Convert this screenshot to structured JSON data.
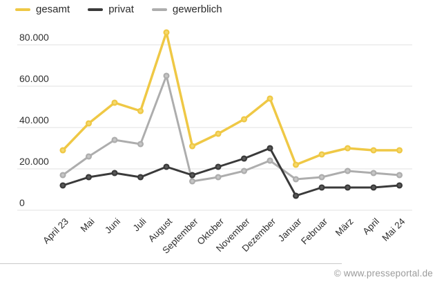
{
  "chart_data": {
    "type": "line",
    "x": [
      "April 23",
      "Mai",
      "Juni",
      "Juli",
      "August",
      "September",
      "Oktober",
      "November",
      "Dezember",
      "Januar",
      "Februar",
      "März",
      "April",
      "Mai 24"
    ],
    "series": [
      {
        "name": "gesamt",
        "color": "#EFC845",
        "dot_fill": "#F5D96E",
        "line_width": 3.5,
        "values": [
          29000,
          42000,
          52000,
          48000,
          86000,
          31000,
          37000,
          44000,
          54000,
          22000,
          27000,
          30000,
          29000,
          29000
        ]
      },
      {
        "name": "privat",
        "color": "#3A3A3A",
        "dot_fill": "#5A5A5A",
        "line_width": 3,
        "values": [
          12000,
          16000,
          18000,
          16000,
          21000,
          17000,
          21000,
          25000,
          30000,
          7000,
          11000,
          11000,
          11000,
          12000
        ]
      },
      {
        "name": "gewerblich",
        "color": "#ADADAD",
        "dot_fill": "#C6C6C6",
        "line_width": 3,
        "values": [
          17000,
          26000,
          34000,
          32000,
          65000,
          14000,
          16000,
          19000,
          24000,
          15000,
          16000,
          19000,
          18000,
          17000
        ]
      }
    ],
    "yticks": {
      "values": [
        0,
        20000,
        40000,
        60000,
        80000
      ],
      "labels": [
        "0",
        "20.000",
        "40.000",
        "60.000",
        "80.000"
      ]
    },
    "ylim": [
      0,
      80000
    ],
    "grid": "horizontal",
    "legend_position": "top-left"
  },
  "colors": {
    "gridline": "#e2e2e2",
    "tick_text": "#2f2f2f",
    "footer_text": "#9b9b9b"
  },
  "footer": {
    "copyright": "© www.presseportal.de"
  }
}
